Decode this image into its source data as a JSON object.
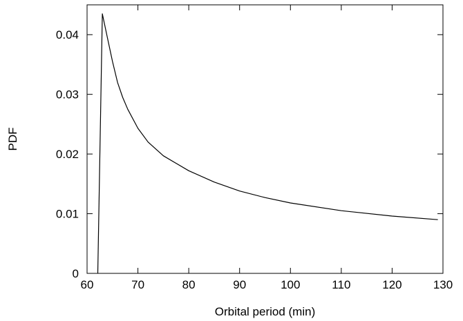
{
  "chart_data": {
    "type": "line",
    "xlabel": "Orbital period (min)",
    "ylabel": "PDF",
    "xlim": [
      60,
      130
    ],
    "ylim": [
      0,
      0.045
    ],
    "grid": false,
    "x_ticks": [
      "60",
      "70",
      "80",
      "90",
      "100",
      "110",
      "120",
      "130"
    ],
    "y_ticks": [
      "0",
      "0.01",
      "0.02",
      "0.03",
      "0.04"
    ],
    "series": [
      {
        "color": "#000000",
        "x": [
          62.1,
          63.0,
          64.0,
          65.0,
          66.0,
          67.0,
          68.0,
          70.0,
          72.0,
          75.0,
          80.0,
          85.0,
          90.0,
          95.0,
          100.0,
          110.0,
          120.0,
          129.0
        ],
        "y": [
          0.0,
          0.0435,
          0.0395,
          0.0355,
          0.032,
          0.0295,
          0.0275,
          0.0243,
          0.022,
          0.0197,
          0.0172,
          0.0153,
          0.0138,
          0.0127,
          0.0118,
          0.0105,
          0.0096,
          0.009
        ]
      }
    ]
  }
}
